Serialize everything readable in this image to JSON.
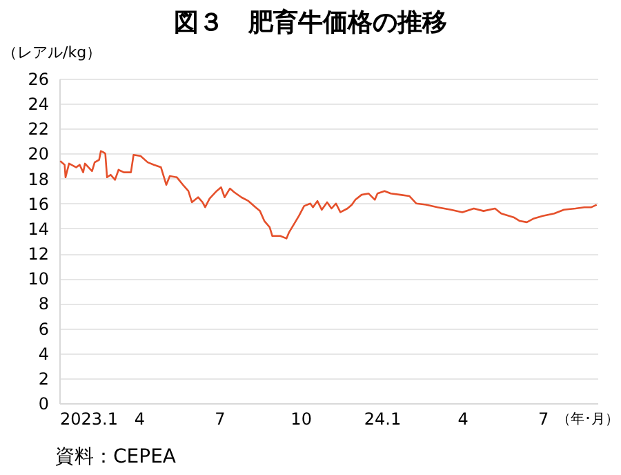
{
  "chart_data": {
    "type": "line",
    "title": "図３　肥育牛価格の推移",
    "ylabel": "（レアル/kg）",
    "xlabel": "（年･月）",
    "annotations": [
      "資料：CEPEA"
    ],
    "x": [
      "2023-01-02",
      "2023-01-07",
      "2023-01-08",
      "2023-01-12",
      "2023-01-20",
      "2023-01-24",
      "2023-01-28",
      "2023-01-30",
      "2023-02-07",
      "2023-02-10",
      "2023-02-15",
      "2023-02-17",
      "2023-02-20",
      "2023-02-22",
      "2023-02-24",
      "2023-02-28",
      "2023-03-05",
      "2023-03-09",
      "2023-03-15",
      "2023-03-23",
      "2023-03-26",
      "2023-04-03",
      "2023-04-11",
      "2023-04-18",
      "2023-04-26",
      "2023-05-02",
      "2023-05-06",
      "2023-05-14",
      "2023-05-22",
      "2023-05-27",
      "2023-05-31",
      "2023-06-07",
      "2023-06-12",
      "2023-06-15",
      "2023-06-20",
      "2023-06-28",
      "2023-07-03",
      "2023-07-07",
      "2023-07-13",
      "2023-07-18",
      "2023-07-26",
      "2023-08-03",
      "2023-08-11",
      "2023-08-16",
      "2023-08-21",
      "2023-08-27",
      "2023-08-30",
      "2023-09-08",
      "2023-09-15",
      "2023-09-18",
      "2023-09-24",
      "2023-09-29",
      "2023-10-05",
      "2023-10-12",
      "2023-10-15",
      "2023-10-20",
      "2023-10-25",
      "2023-10-31",
      "2023-11-05",
      "2023-11-10",
      "2023-11-15",
      "2023-11-23",
      "2023-11-28",
      "2023-12-02",
      "2023-12-09",
      "2023-12-17",
      "2023-12-24",
      "2023-12-27",
      "2024-01-04",
      "2024-01-11",
      "2024-01-22",
      "2024-02-01",
      "2024-02-09",
      "2024-02-20",
      "2024-03-04",
      "2024-03-19",
      "2024-04-01",
      "2024-04-14",
      "2024-04-25",
      "2024-05-08",
      "2024-05-15",
      "2024-05-29",
      "2024-06-05",
      "2024-06-13",
      "2024-06-21",
      "2024-07-01",
      "2024-07-14",
      "2024-07-25",
      "2024-08-07",
      "2024-08-17",
      "2024-08-25",
      "2024-08-31"
    ],
    "series": [
      {
        "color": "#e5502b",
        "values": [
          19.4,
          19.1,
          18.1,
          19.2,
          18.9,
          19.1,
          18.5,
          19.2,
          18.6,
          19.3,
          19.5,
          20.2,
          20.1,
          20.0,
          18.1,
          18.3,
          17.9,
          18.7,
          18.5,
          18.5,
          19.9,
          19.8,
          19.3,
          19.1,
          18.9,
          17.5,
          18.2,
          18.1,
          17.4,
          17.0,
          16.1,
          16.5,
          16.1,
          15.7,
          16.4,
          17.0,
          17.3,
          16.5,
          17.2,
          16.9,
          16.5,
          16.2,
          15.7,
          15.4,
          14.6,
          14.1,
          13.4,
          13.4,
          13.2,
          13.7,
          14.4,
          15.0,
          15.8,
          16.0,
          15.7,
          16.2,
          15.5,
          16.1,
          15.6,
          16.0,
          15.3,
          15.6,
          15.9,
          16.3,
          16.7,
          16.8,
          16.3,
          16.8,
          17.0,
          16.8,
          16.7,
          16.6,
          16.0,
          15.9,
          15.7,
          15.5,
          15.3,
          15.6,
          15.4,
          15.6,
          15.2,
          14.9,
          14.6,
          14.5,
          14.8,
          15.0,
          15.2,
          15.5,
          15.6,
          15.7,
          15.7,
          15.9
        ]
      }
    ],
    "xlim": [
      "2023-01-01",
      "2024-09-01"
    ],
    "xticks": [
      {
        "value": "2023-01-01",
        "label": "2023.1"
      },
      {
        "value": "2023-04-01",
        "label": "4"
      },
      {
        "value": "2023-07-01",
        "label": "7"
      },
      {
        "value": "2023-10-01",
        "label": "10"
      },
      {
        "value": "2024-01-01",
        "label": "24.1"
      },
      {
        "value": "2024-04-01",
        "label": "4"
      },
      {
        "value": "2024-07-01",
        "label": "7"
      }
    ],
    "ylim": [
      0,
      26
    ],
    "yticks": [
      0,
      2,
      4,
      6,
      8,
      10,
      12,
      14,
      16,
      18,
      20,
      22,
      24,
      26
    ],
    "grid": "y"
  }
}
